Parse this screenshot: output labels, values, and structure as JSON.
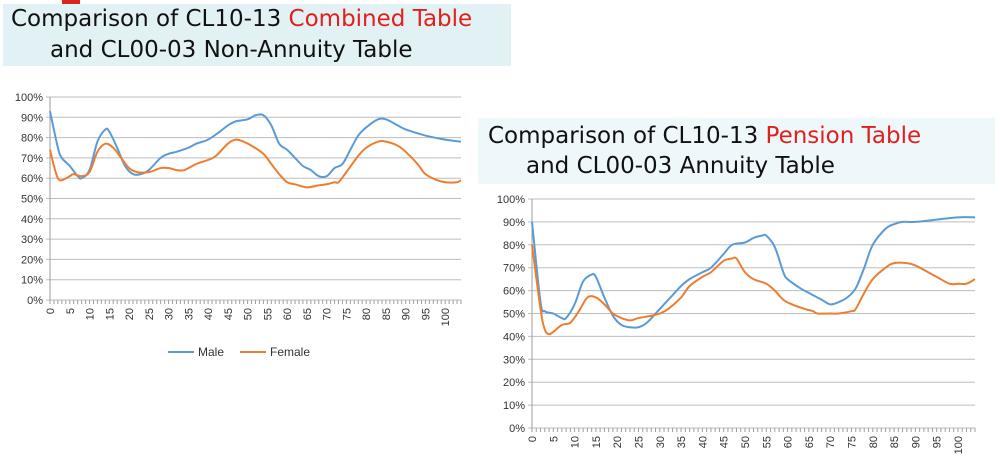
{
  "chart_data": [
    {
      "type": "line",
      "title_part1": "Comparison of CL10-13 ",
      "title_highlight": "Combined Table",
      "title_line2": "and CL00-03 Non-Annuity Table",
      "xlabel": "",
      "ylabel": "",
      "xlim": [
        0,
        104
      ],
      "ylim": [
        0,
        100
      ],
      "xticks": [
        0,
        5,
        10,
        15,
        20,
        25,
        30,
        35,
        40,
        45,
        50,
        55,
        60,
        65,
        70,
        75,
        80,
        85,
        90,
        95,
        100
      ],
      "yticks": [
        "0%",
        "10%",
        "20%",
        "30%",
        "40%",
        "50%",
        "60%",
        "70%",
        "80%",
        "90%",
        "100%"
      ],
      "grid": true,
      "legend": "bottom",
      "series": [
        {
          "name": "Male",
          "color": "#5b9bd5",
          "points": [
            [
              0,
              93
            ],
            [
              2,
              75
            ],
            [
              3,
              70
            ],
            [
              5,
              66
            ],
            [
              7,
              61
            ],
            [
              8,
              60
            ],
            [
              10,
              64
            ],
            [
              12,
              78
            ],
            [
              14,
              84
            ],
            [
              15,
              83
            ],
            [
              17,
              75
            ],
            [
              19,
              66
            ],
            [
              21,
              62
            ],
            [
              23,
              62
            ],
            [
              25,
              64
            ],
            [
              28,
              70
            ],
            [
              30,
              72
            ],
            [
              32,
              73
            ],
            [
              35,
              75
            ],
            [
              37,
              77
            ],
            [
              40,
              79
            ],
            [
              43,
              83
            ],
            [
              45,
              86
            ],
            [
              47,
              88
            ],
            [
              50,
              89
            ],
            [
              52,
              91
            ],
            [
              54,
              91
            ],
            [
              56,
              86
            ],
            [
              58,
              77
            ],
            [
              60,
              74
            ],
            [
              62,
              70
            ],
            [
              64,
              66
            ],
            [
              66,
              64
            ],
            [
              68,
              61
            ],
            [
              70,
              61
            ],
            [
              72,
              65
            ],
            [
              74,
              67
            ],
            [
              76,
              74
            ],
            [
              78,
              81
            ],
            [
              80,
              85
            ],
            [
              83,
              89
            ],
            [
              85,
              89
            ],
            [
              88,
              86
            ],
            [
              90,
              84
            ],
            [
              95,
              81
            ],
            [
              100,
              79
            ],
            [
              104,
              78
            ]
          ]
        },
        {
          "name": "Female",
          "color": "#ed7d31",
          "points": [
            [
              0,
              74
            ],
            [
              1,
              66
            ],
            [
              2,
              60
            ],
            [
              3,
              59
            ],
            [
              5,
              61
            ],
            [
              6,
              62
            ],
            [
              8,
              61
            ],
            [
              10,
              63
            ],
            [
              12,
              73
            ],
            [
              14,
              77
            ],
            [
              16,
              75
            ],
            [
              18,
              70
            ],
            [
              20,
              65
            ],
            [
              22,
              63
            ],
            [
              25,
              63
            ],
            [
              28,
              65
            ],
            [
              30,
              65
            ],
            [
              32,
              64
            ],
            [
              34,
              64
            ],
            [
              37,
              67
            ],
            [
              40,
              69
            ],
            [
              42,
              71
            ],
            [
              45,
              77
            ],
            [
              47,
              79
            ],
            [
              49,
              78
            ],
            [
              51,
              76
            ],
            [
              54,
              72
            ],
            [
              56,
              67
            ],
            [
              58,
              62
            ],
            [
              60,
              58
            ],
            [
              62,
              57
            ],
            [
              65,
              55.5
            ],
            [
              68,
              56.5
            ],
            [
              70,
              57
            ],
            [
              72,
              58
            ],
            [
              73,
              58
            ],
            [
              75,
              63
            ],
            [
              78,
              71
            ],
            [
              80,
              75
            ],
            [
              83,
              78
            ],
            [
              85,
              78
            ],
            [
              88,
              76
            ],
            [
              90,
              73
            ],
            [
              93,
              67
            ],
            [
              95,
              62
            ],
            [
              98,
              59
            ],
            [
              100,
              58
            ],
            [
              103,
              58
            ],
            [
              104,
              59
            ]
          ]
        }
      ]
    },
    {
      "type": "line",
      "title_part1": "Comparison of CL10-13 ",
      "title_highlight": "Pension Table",
      "title_line2": "and CL00-03 Annuity Table",
      "xlabel": "",
      "ylabel": "",
      "xlim": [
        0,
        104
      ],
      "ylim": [
        0,
        100
      ],
      "xticks": [
        0,
        5,
        10,
        15,
        20,
        25,
        30,
        35,
        40,
        45,
        50,
        55,
        60,
        65,
        70,
        75,
        80,
        85,
        90,
        95,
        100
      ],
      "yticks": [
        "0%",
        "10%",
        "20%",
        "30%",
        "40%",
        "50%",
        "60%",
        "70%",
        "80%",
        "90%",
        "100%"
      ],
      "grid": true,
      "legend": "none",
      "series": [
        {
          "name": "Male",
          "color": "#5b9bd5",
          "points": [
            [
              0,
              90
            ],
            [
              2,
              55
            ],
            [
              3,
              51
            ],
            [
              5,
              50
            ],
            [
              7,
              48
            ],
            [
              8,
              48
            ],
            [
              10,
              54
            ],
            [
              12,
              64
            ],
            [
              14,
              67
            ],
            [
              15,
              66
            ],
            [
              17,
              57
            ],
            [
              19,
              49
            ],
            [
              21,
              45
            ],
            [
              23,
              44
            ],
            [
              25,
              44
            ],
            [
              27,
              46
            ],
            [
              30,
              52
            ],
            [
              33,
              58
            ],
            [
              35,
              62
            ],
            [
              37,
              65
            ],
            [
              40,
              68
            ],
            [
              42,
              70
            ],
            [
              45,
              76
            ],
            [
              47,
              80
            ],
            [
              50,
              81
            ],
            [
              52,
              83
            ],
            [
              54,
              84
            ],
            [
              55,
              84
            ],
            [
              57,
              79
            ],
            [
              59,
              68
            ],
            [
              60,
              65
            ],
            [
              63,
              61
            ],
            [
              65,
              59
            ],
            [
              68,
              56
            ],
            [
              70,
              54
            ],
            [
              72,
              55
            ],
            [
              74,
              57
            ],
            [
              76,
              61
            ],
            [
              78,
              70
            ],
            [
              80,
              80
            ],
            [
              83,
              87
            ],
            [
              85,
              89
            ],
            [
              87,
              90
            ],
            [
              90,
              90
            ],
            [
              95,
              91
            ],
            [
              100,
              92
            ],
            [
              104,
              92
            ]
          ]
        },
        {
          "name": "Female",
          "color": "#ed7d31",
          "points": [
            [
              0,
              80
            ],
            [
              2,
              52
            ],
            [
              3,
              43
            ],
            [
              4,
              41
            ],
            [
              5,
              42
            ],
            [
              7,
              45
            ],
            [
              9,
              46
            ],
            [
              11,
              51
            ],
            [
              13,
              57
            ],
            [
              15,
              57
            ],
            [
              17,
              54
            ],
            [
              19,
              50
            ],
            [
              21,
              48
            ],
            [
              23,
              47
            ],
            [
              25,
              48
            ],
            [
              28,
              49
            ],
            [
              30,
              50
            ],
            [
              32,
              52
            ],
            [
              35,
              57
            ],
            [
              37,
              62
            ],
            [
              40,
              66
            ],
            [
              42,
              68
            ],
            [
              45,
              73
            ],
            [
              47,
              74
            ],
            [
              48,
              74
            ],
            [
              50,
              68
            ],
            [
              52,
              65
            ],
            [
              55,
              63
            ],
            [
              57,
              60
            ],
            [
              59,
              56
            ],
            [
              61,
              54
            ],
            [
              64,
              52
            ],
            [
              66,
              51
            ],
            [
              67,
              50
            ],
            [
              70,
              50
            ],
            [
              72,
              50
            ],
            [
              75,
              51
            ],
            [
              76,
              52
            ],
            [
              78,
              59
            ],
            [
              80,
              65
            ],
            [
              83,
              70
            ],
            [
              85,
              72
            ],
            [
              88,
              72
            ],
            [
              90,
              71
            ],
            [
              93,
              68
            ],
            [
              95,
              66
            ],
            [
              98,
              63
            ],
            [
              100,
              63
            ],
            [
              102,
              63
            ],
            [
              104,
              65
            ]
          ]
        }
      ]
    }
  ]
}
